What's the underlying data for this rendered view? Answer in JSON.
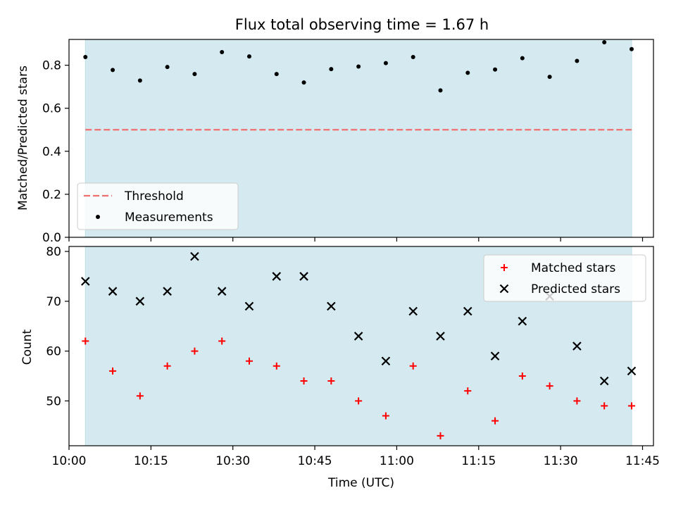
{
  "chart_data": [
    {
      "type": "scatter",
      "title": "Flux total observing time = 1.67 h",
      "ylabel": "Matched/Predicted stars",
      "xlabel": "",
      "xlim": [
        "10:00",
        "11:47"
      ],
      "ylim": [
        0,
        0.92
      ],
      "shaded_span": [
        "10:03",
        "11:43"
      ],
      "shade_color": "#d4eaf0",
      "threshold": {
        "name": "Threshold",
        "value": 0.5,
        "color": "#f07070",
        "style": "dashed"
      },
      "yticks": [
        "0.0",
        "0.2",
        "0.4",
        "0.6",
        "0.8"
      ],
      "legend": {
        "position": "lower-left",
        "entries": [
          "Threshold",
          "Measurements"
        ]
      },
      "series": [
        {
          "name": "Measurements",
          "marker": "dot",
          "color": "#000000",
          "x": [
            "10:03",
            "10:08",
            "10:13",
            "10:18",
            "10:23",
            "10:28",
            "10:33",
            "10:38",
            "10:43",
            "10:48",
            "10:53",
            "10:58",
            "11:03",
            "11:08",
            "11:13",
            "11:18",
            "11:23",
            "11:28",
            "11:33",
            "11:38",
            "11:43"
          ],
          "values": [
            0.838,
            0.778,
            0.729,
            0.792,
            0.759,
            0.861,
            0.841,
            0.759,
            0.72,
            0.782,
            0.794,
            0.81,
            0.838,
            0.683,
            0.765,
            0.78,
            0.833,
            0.746,
            0.82,
            0.907,
            0.875
          ]
        }
      ]
    },
    {
      "type": "scatter",
      "title": "",
      "ylabel": "Count",
      "xlabel": "Time (UTC)",
      "xlim": [
        "10:00",
        "11:47"
      ],
      "ylim": [
        41,
        81
      ],
      "shaded_span": [
        "10:03",
        "11:43"
      ],
      "shade_color": "#d4eaf0",
      "xticks": [
        "10:00",
        "10:15",
        "10:30",
        "10:45",
        "11:00",
        "11:15",
        "11:30",
        "11:45"
      ],
      "yticks": [
        "50",
        "60",
        "70",
        "80"
      ],
      "legend": {
        "position": "top-right",
        "entries": [
          "Matched stars",
          "Predicted stars"
        ]
      },
      "series": [
        {
          "name": "Matched stars",
          "marker": "plus",
          "color": "#ff0000",
          "x": [
            "10:03",
            "10:08",
            "10:13",
            "10:18",
            "10:23",
            "10:28",
            "10:33",
            "10:38",
            "10:43",
            "10:48",
            "10:53",
            "10:58",
            "11:03",
            "11:08",
            "11:13",
            "11:18",
            "11:23",
            "11:28",
            "11:33",
            "11:38",
            "11:43"
          ],
          "values": [
            62,
            56,
            51,
            57,
            60,
            62,
            58,
            57,
            54,
            54,
            50,
            47,
            57,
            43,
            52,
            46,
            55,
            53,
            50,
            49,
            49
          ]
        },
        {
          "name": "Predicted stars",
          "marker": "x",
          "color": "#000000",
          "x": [
            "10:03",
            "10:08",
            "10:13",
            "10:18",
            "10:23",
            "10:28",
            "10:33",
            "10:38",
            "10:43",
            "10:48",
            "10:53",
            "10:58",
            "11:03",
            "11:08",
            "11:13",
            "11:18",
            "11:23",
            "11:28",
            "11:33",
            "11:38",
            "11:43"
          ],
          "values": [
            74,
            72,
            70,
            72,
            79,
            72,
            69,
            75,
            75,
            69,
            63,
            58,
            68,
            63,
            68,
            59,
            66,
            71,
            61,
            54,
            56
          ]
        }
      ]
    }
  ]
}
